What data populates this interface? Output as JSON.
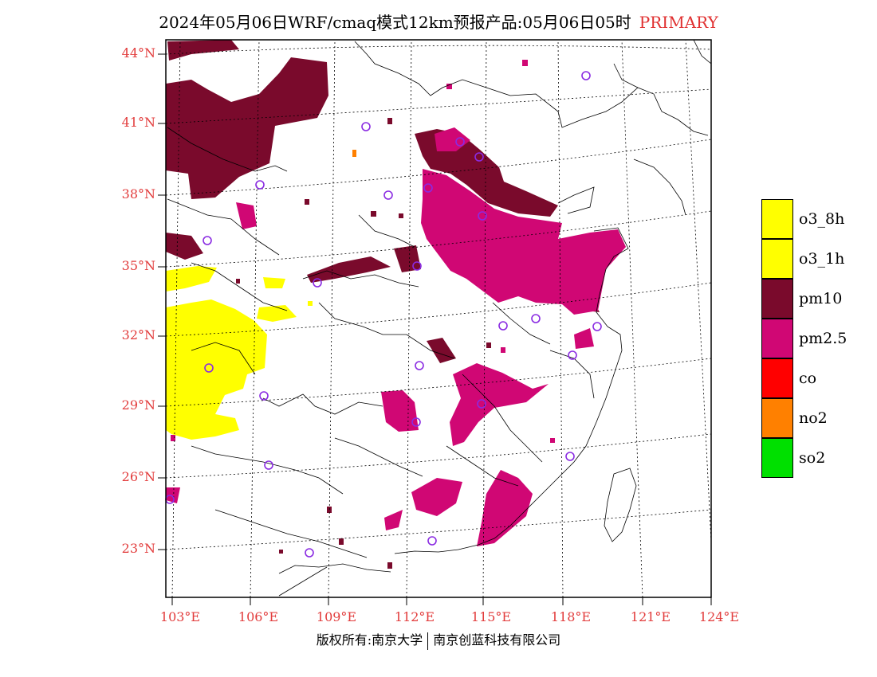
{
  "title": {
    "main": "2024年05月06日WRF/cmaq模式12km预报产品:05月06日05时",
    "tag": "PRIMARY"
  },
  "map": {
    "lat_labels": [
      "44°N",
      "41°N",
      "38°N",
      "35°N",
      "32°N",
      "29°N",
      "26°N",
      "23°N"
    ],
    "lon_labels": [
      "103°E",
      "106°E",
      "109°E",
      "112°E",
      "115°E",
      "118°E",
      "121°E",
      "124°E"
    ],
    "colors": {
      "o3_8h": "#ffff00",
      "o3_1h": "#ffff00",
      "pm10": "#7a0a2c",
      "pm2.5": "#d00774",
      "co": "#ff0000",
      "no2": "#ff8000",
      "so2": "#00e000",
      "station": "#8a2be2",
      "label": "#e23c3c"
    }
  },
  "legend": [
    {
      "label": "o3_8h",
      "color": "#ffff00"
    },
    {
      "label": "o3_1h",
      "color": "#ffff00"
    },
    {
      "label": "pm10",
      "color": "#7a0a2c"
    },
    {
      "label": "pm2.5",
      "color": "#d00774"
    },
    {
      "label": "co",
      "color": "#ff0000"
    },
    {
      "label": "no2",
      "color": "#ff8000"
    },
    {
      "label": "so2",
      "color": "#00e000"
    }
  ],
  "footer": {
    "left": "版权所有:南京大学",
    "right": "南京创蓝科技有限公司"
  }
}
